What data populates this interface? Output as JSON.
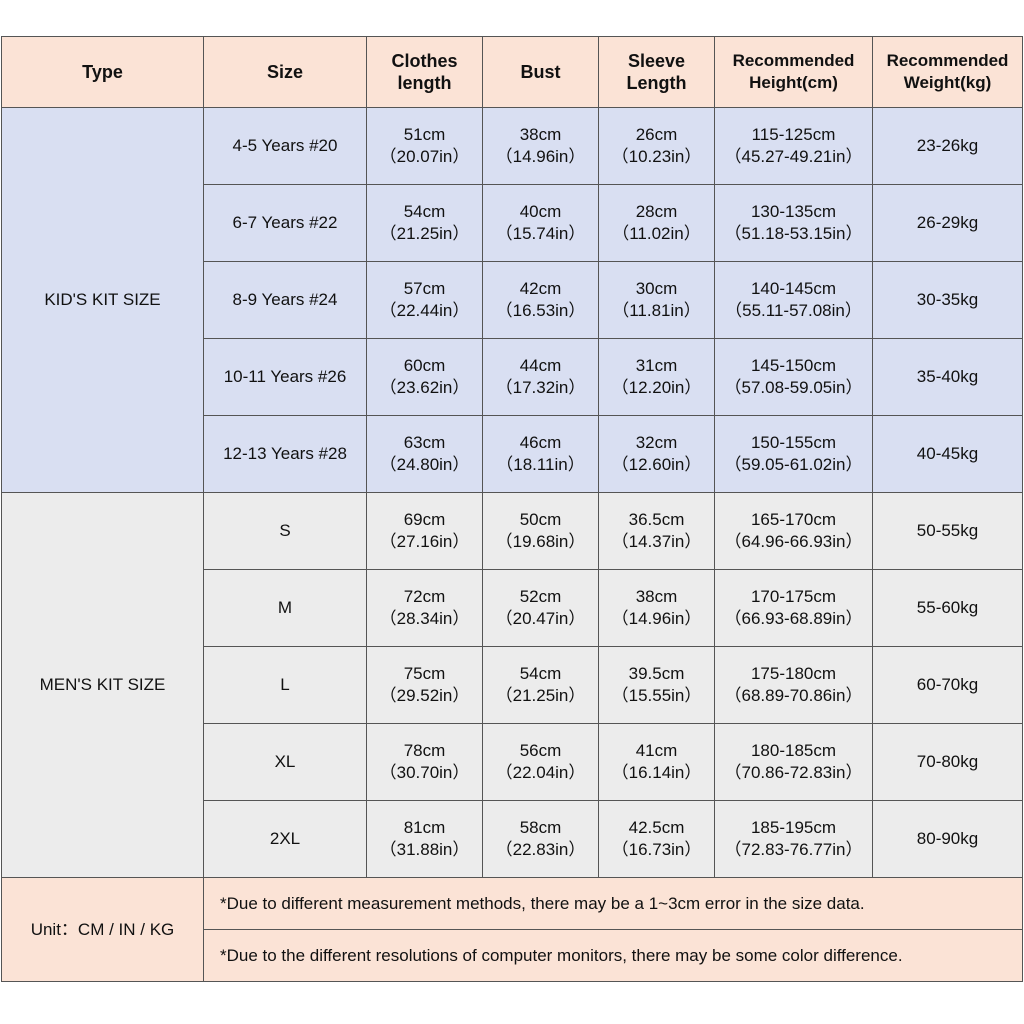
{
  "headers": {
    "type": "Type",
    "size": "Size",
    "clothes_length": [
      "Clothes",
      "length"
    ],
    "bust": "Bust",
    "sleeve_length": [
      "Sleeve",
      "Length"
    ],
    "rec_height": [
      "Recommended",
      "Height(cm)"
    ],
    "rec_weight": [
      "Recommended",
      "Weight(kg)"
    ]
  },
  "kids": {
    "type_label": "KID'S KIT SIZE",
    "rows": [
      {
        "size": "4-5 Years #20",
        "length_cm": "51cm",
        "length_in": "（20.07in）",
        "bust_cm": "38cm",
        "bust_in": "（14.96in）",
        "sleeve_cm": "26cm",
        "sleeve_in": "（10.23in）",
        "height_cm": "115-125cm",
        "height_in": "（45.27-49.21in）",
        "weight": "23-26kg"
      },
      {
        "size": "6-7 Years #22",
        "length_cm": "54cm",
        "length_in": "（21.25in）",
        "bust_cm": "40cm",
        "bust_in": "（15.74in）",
        "sleeve_cm": "28cm",
        "sleeve_in": "（11.02in）",
        "height_cm": "130-135cm",
        "height_in": "（51.18-53.15in）",
        "weight": "26-29kg"
      },
      {
        "size": "8-9 Years #24",
        "length_cm": "57cm",
        "length_in": "（22.44in）",
        "bust_cm": "42cm",
        "bust_in": "（16.53in）",
        "sleeve_cm": "30cm",
        "sleeve_in": "（11.81in）",
        "height_cm": "140-145cm",
        "height_in": "（55.11-57.08in）",
        "weight": "30-35kg"
      },
      {
        "size": "10-11 Years #26",
        "length_cm": "60cm",
        "length_in": "（23.62in）",
        "bust_cm": "44cm",
        "bust_in": "（17.32in）",
        "sleeve_cm": "31cm",
        "sleeve_in": "（12.20in）",
        "height_cm": "145-150cm",
        "height_in": "（57.08-59.05in）",
        "weight": "35-40kg"
      },
      {
        "size": "12-13 Years #28",
        "length_cm": "63cm",
        "length_in": "（24.80in）",
        "bust_cm": "46cm",
        "bust_in": "（18.11in）",
        "sleeve_cm": "32cm",
        "sleeve_in": "（12.60in）",
        "height_cm": "150-155cm",
        "height_in": "（59.05-61.02in）",
        "weight": "40-45kg"
      }
    ]
  },
  "men": {
    "type_label": "MEN'S KIT SIZE",
    "rows": [
      {
        "size": "S",
        "length_cm": "69cm",
        "length_in": "（27.16in）",
        "bust_cm": "50cm",
        "bust_in": "（19.68in）",
        "sleeve_cm": "36.5cm",
        "sleeve_in": "（14.37in）",
        "height_cm": "165-170cm",
        "height_in": "（64.96-66.93in）",
        "weight": "50-55kg"
      },
      {
        "size": "M",
        "length_cm": "72cm",
        "length_in": "（28.34in）",
        "bust_cm": "52cm",
        "bust_in": "（20.47in）",
        "sleeve_cm": "38cm",
        "sleeve_in": "（14.96in）",
        "height_cm": "170-175cm",
        "height_in": "（66.93-68.89in）",
        "weight": "55-60kg"
      },
      {
        "size": "L",
        "length_cm": "75cm",
        "length_in": "（29.52in）",
        "bust_cm": "54cm",
        "bust_in": "（21.25in）",
        "sleeve_cm": "39.5cm",
        "sleeve_in": "（15.55in）",
        "height_cm": "175-180cm",
        "height_in": "（68.89-70.86in）",
        "weight": "60-70kg"
      },
      {
        "size": "XL",
        "length_cm": "78cm",
        "length_in": "（30.70in）",
        "bust_cm": "56cm",
        "bust_in": "（22.04in）",
        "sleeve_cm": "41cm",
        "sleeve_in": "（16.14in）",
        "height_cm": "180-185cm",
        "height_in": "（70.86-72.83in）",
        "weight": "70-80kg"
      },
      {
        "size": "2XL",
        "length_cm": "81cm",
        "length_in": "（31.88in）",
        "bust_cm": "58cm",
        "bust_in": "（22.83in）",
        "sleeve_cm": "42.5cm",
        "sleeve_in": "（16.73in）",
        "height_cm": "185-195cm",
        "height_in": "（72.83-76.77in）",
        "weight": "80-90kg"
      }
    ]
  },
  "footer": {
    "unit": "Unit：CM / IN / KG",
    "notes": [
      "*Due to different measurement methods, there may be a 1~3cm error in the size data.",
      "*Due to the different resolutions of computer monitors, there may be some color difference."
    ]
  },
  "colors": {
    "header_bg": "#fbe3d6",
    "kids_bg": "#d9dff2",
    "men_bg": "#ececec",
    "border": "#555555"
  }
}
